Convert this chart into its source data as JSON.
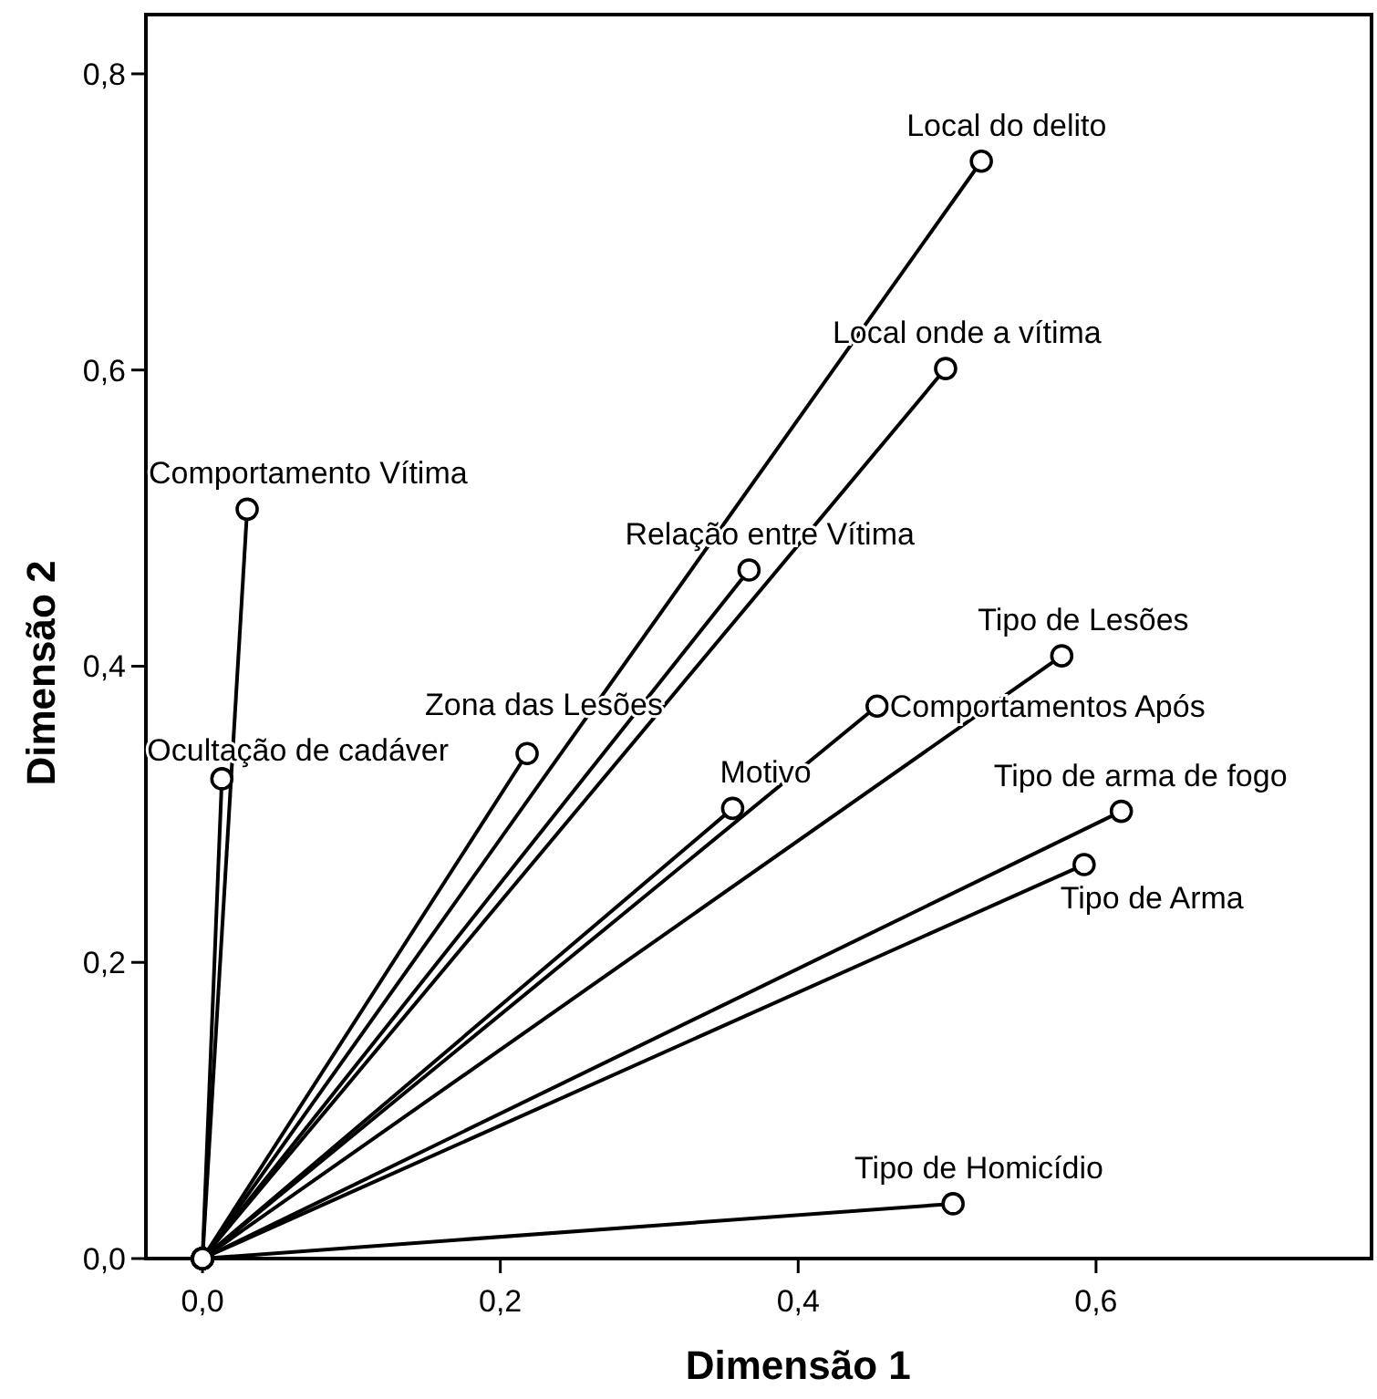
{
  "chart_data": {
    "type": "line",
    "xlabel": "Dimensão 1",
    "ylabel": "Dimensão 2",
    "xlim": [
      -0.038,
      0.785
    ],
    "ylim": [
      0,
      0.84
    ],
    "xticks": [
      {
        "value": 0,
        "label": "0,0"
      },
      {
        "value": 0.2,
        "label": "0,2"
      },
      {
        "value": 0.4,
        "label": "0,4"
      },
      {
        "value": 0.6,
        "label": "0,6"
      }
    ],
    "yticks": [
      {
        "value": 0,
        "label": "0,0"
      },
      {
        "value": 0.2,
        "label": "0,2"
      },
      {
        "value": 0.4,
        "label": "0,4"
      },
      {
        "value": 0.6,
        "label": "0,6"
      },
      {
        "value": 0.8,
        "label": "0,8"
      }
    ],
    "grid": false,
    "marker": "circle",
    "line_style": "solid",
    "series": [
      {
        "name": "Local do delito",
        "color": "#000000",
        "x": [
          0,
          0.523
        ],
        "values": [
          0,
          0.741
        ]
      },
      {
        "name": "Local onde a vítima",
        "color": "#000000",
        "x": [
          0,
          0.499
        ],
        "values": [
          0,
          0.601
        ]
      },
      {
        "name": "Comportamento Vítima",
        "color": "#000000",
        "x": [
          0,
          0.03
        ],
        "values": [
          0,
          0.506
        ]
      },
      {
        "name": "Relação entre Vítima",
        "color": "#000000",
        "x": [
          0,
          0.367
        ],
        "values": [
          0,
          0.465
        ]
      },
      {
        "name": "Tipo de Lesões",
        "color": "#000000",
        "x": [
          0,
          0.577
        ],
        "values": [
          0,
          0.407
        ]
      },
      {
        "name": "Zona das Lesões",
        "color": "#000000",
        "x": [
          0,
          0.218
        ],
        "values": [
          0,
          0.341
        ]
      },
      {
        "name": "Comportamentos Após",
        "color": "#000000",
        "x": [
          0,
          0.453
        ],
        "values": [
          0,
          0.373
        ]
      },
      {
        "name": "Ocultação de cadáver",
        "color": "#000000",
        "x": [
          0,
          0.013
        ],
        "values": [
          0,
          0.324
        ]
      },
      {
        "name": "Motivo",
        "color": "#000000",
        "x": [
          0,
          0.356
        ],
        "values": [
          0,
          0.304
        ]
      },
      {
        "name": "Tipo de arma de fogo",
        "color": "#000000",
        "x": [
          0,
          0.617
        ],
        "values": [
          0,
          0.302
        ]
      },
      {
        "name": "Tipo de Arma",
        "color": "#000000",
        "x": [
          0,
          0.592
        ],
        "values": [
          0,
          0.266
        ]
      },
      {
        "name": "Tipo de Homicídio",
        "color": "#000000",
        "x": [
          0,
          0.504
        ],
        "values": [
          0,
          0.037
        ]
      }
    ]
  }
}
